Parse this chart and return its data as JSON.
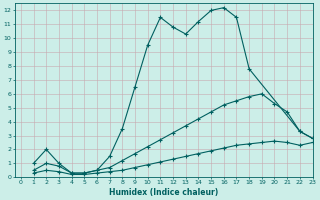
{
  "xlabel": "Humidex (Indice chaleur)",
  "bg_color": "#cceee8",
  "line_color": "#006060",
  "grid_color": "#b0d0cc",
  "xlim": [
    -0.5,
    23
  ],
  "ylim": [
    0,
    12.5
  ],
  "xticks": [
    0,
    1,
    2,
    3,
    4,
    5,
    6,
    7,
    8,
    9,
    10,
    11,
    12,
    13,
    14,
    15,
    16,
    17,
    18,
    19,
    20,
    21,
    22,
    23
  ],
  "yticks": [
    0,
    1,
    2,
    3,
    4,
    5,
    6,
    7,
    8,
    9,
    10,
    11,
    12
  ],
  "curves": [
    {
      "x": [
        1,
        2,
        3,
        4,
        5,
        6,
        7,
        8,
        9,
        10,
        11,
        12,
        13,
        14,
        15,
        16,
        17,
        18,
        22,
        23
      ],
      "y": [
        1,
        2,
        1,
        0.3,
        0.3,
        0.5,
        1.5,
        3.5,
        6.5,
        9.5,
        11.5,
        10.8,
        10.3,
        11.2,
        12.0,
        12.2,
        11.5,
        7.8,
        3.3,
        2.8
      ]
    },
    {
      "x": [
        1,
        2,
        3,
        4,
        5,
        6,
        7,
        8,
        9,
        10,
        11,
        12,
        13,
        14,
        15,
        16,
        17,
        18,
        19,
        20,
        21,
        22,
        23
      ],
      "y": [
        0.5,
        1.0,
        0.8,
        0.3,
        0.3,
        0.5,
        0.7,
        1.2,
        1.7,
        2.2,
        2.7,
        3.2,
        3.7,
        4.2,
        4.7,
        5.2,
        5.5,
        5.8,
        6.0,
        5.3,
        4.7,
        3.3,
        2.8
      ]
    },
    {
      "x": [
        1,
        2,
        3,
        4,
        5,
        6,
        7,
        8,
        9,
        10,
        11,
        12,
        13,
        14,
        15,
        16,
        17,
        18,
        19,
        20,
        21,
        22,
        23
      ],
      "y": [
        0.3,
        0.5,
        0.4,
        0.2,
        0.2,
        0.3,
        0.4,
        0.5,
        0.7,
        0.9,
        1.1,
        1.3,
        1.5,
        1.7,
        1.9,
        2.1,
        2.3,
        2.4,
        2.5,
        2.6,
        2.5,
        2.3,
        2.5
      ]
    }
  ]
}
